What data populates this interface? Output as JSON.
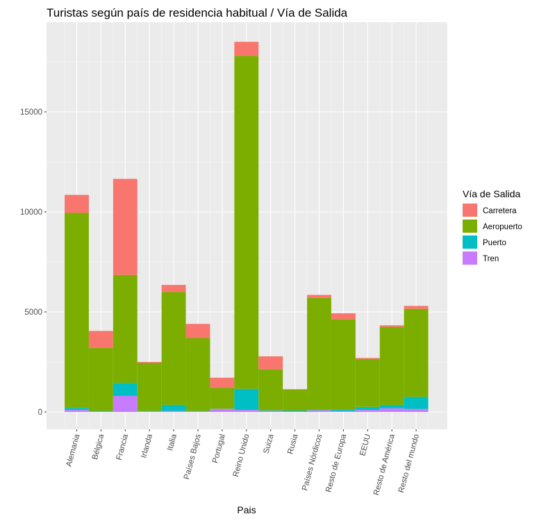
{
  "chart_data": {
    "type": "bar",
    "stacked": true,
    "title": "Turistas según país de residencia habitual / Vía de Salida",
    "xlabel": "Pais",
    "ylabel": "",
    "ylim": [
      -900,
      19500
    ],
    "yticks": [
      0,
      5000,
      10000,
      15000
    ],
    "ytick_labels": [
      "0",
      "5000",
      "10000",
      "15000"
    ],
    "categories": [
      "Alemania",
      "Bélgica",
      "Francia",
      "Irlanda",
      "Italia",
      "Países Bajos",
      "Portugal",
      "Reino Unido",
      "Suiza",
      "Rusia",
      "Países Nórdicos",
      "Resto de Europa",
      "EEUU",
      "Resto de América",
      "Resto del mundo"
    ],
    "series": [
      {
        "name": "Carretera",
        "color": "#F8766D",
        "values": [
          900,
          850,
          4800,
          50,
          350,
          700,
          500,
          700,
          650,
          20,
          150,
          300,
          50,
          80,
          150
        ]
      },
      {
        "name": "Aeropuerto",
        "color": "#7CAE00",
        "values": [
          9750,
          3150,
          5400,
          2400,
          5650,
          3650,
          1050,
          16650,
          2050,
          1050,
          5600,
          4500,
          2400,
          3900,
          4400
        ]
      },
      {
        "name": "Puerto",
        "color": "#00BFC4",
        "values": [
          100,
          30,
          650,
          20,
          300,
          20,
          10,
          1050,
          30,
          50,
          20,
          80,
          150,
          170,
          600
        ]
      },
      {
        "name": "Tren",
        "color": "#C77CFF",
        "values": [
          100,
          20,
          800,
          30,
          50,
          30,
          150,
          100,
          50,
          20,
          80,
          50,
          100,
          180,
          150
        ]
      }
    ],
    "legend": {
      "title": "Vía de Salida",
      "position": "right"
    },
    "grid": true
  }
}
